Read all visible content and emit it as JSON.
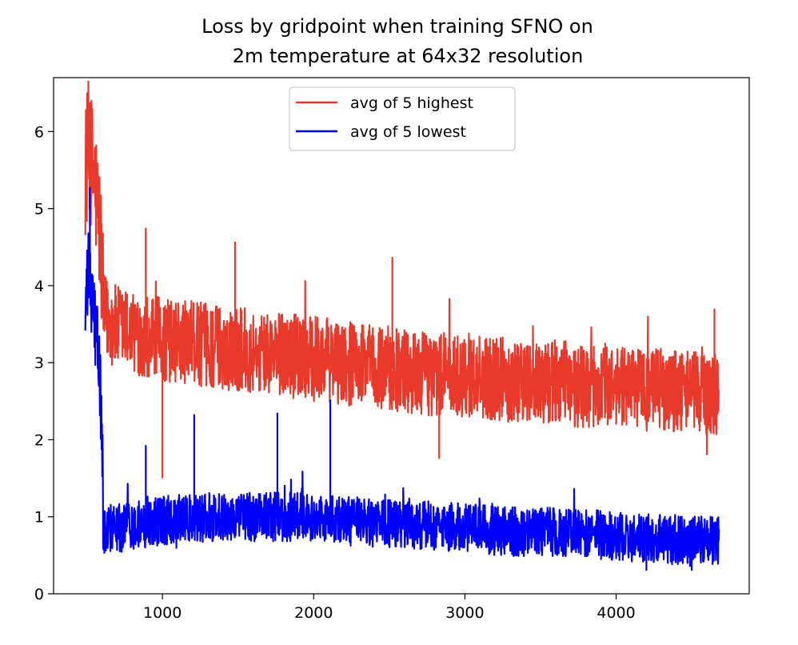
{
  "chart_data": {
    "type": "line",
    "title_lines": [
      "Loss by gridpoint when training SFNO on",
      "2m temperature at 64x32 resolution"
    ],
    "xlabel": "",
    "ylabel": "",
    "xlim": [
      280,
      4880
    ],
    "ylim": [
      0,
      6.7
    ],
    "x_ticks": [
      1000,
      2000,
      3000,
      4000
    ],
    "y_ticks": [
      0,
      1,
      2,
      3,
      4,
      5,
      6
    ],
    "grid": false,
    "legend_position": "upper center",
    "series": [
      {
        "name": "avg of 5 highest",
        "color": "#e8392b",
        "x": [
          490,
          510,
          530,
          550,
          570,
          590,
          610,
          700,
          800,
          900,
          1000,
          1200,
          1400,
          1600,
          1800,
          2000,
          2200,
          2400,
          2600,
          2800,
          3000,
          3200,
          3400,
          3600,
          3800,
          4000,
          4200,
          4400,
          4600,
          4680
        ],
        "y": [
          5.5,
          5.8,
          5.6,
          5.4,
          5.0,
          4.6,
          3.6,
          3.45,
          3.4,
          3.35,
          3.3,
          3.25,
          3.2,
          3.15,
          3.1,
          3.05,
          3.0,
          2.95,
          2.9,
          2.85,
          2.85,
          2.8,
          2.75,
          2.75,
          2.7,
          2.7,
          2.65,
          2.65,
          2.6,
          2.6
        ],
        "noise_amplitude": 0.55,
        "spikes": [
          [
            520,
            6.38
          ],
          [
            890,
            4.75
          ],
          [
            1480,
            4.57
          ],
          [
            2520,
            4.37
          ],
          [
            1000,
            1.5
          ],
          [
            2830,
            1.75
          ],
          [
            4600,
            1.8
          ],
          [
            4650,
            3.7
          ]
        ]
      },
      {
        "name": "avg of 5 lowest",
        "color": "#0000ff",
        "x": [
          490,
          510,
          530,
          550,
          570,
          590,
          610,
          700,
          800,
          900,
          1000,
          1200,
          1400,
          1600,
          1800,
          2000,
          2200,
          2400,
          2600,
          2800,
          3000,
          3200,
          3400,
          3600,
          3800,
          4000,
          4200,
          4400,
          4600,
          4680
        ],
        "y": [
          3.6,
          4.2,
          3.8,
          3.6,
          3.2,
          2.7,
          0.85,
          0.85,
          0.88,
          0.92,
          0.95,
          0.98,
          1.0,
          1.0,
          1.0,
          0.98,
          0.95,
          0.92,
          0.9,
          0.88,
          0.85,
          0.82,
          0.8,
          0.8,
          0.78,
          0.75,
          0.72,
          0.7,
          0.7,
          0.7
        ],
        "noise_amplitude": 0.32,
        "spikes": [
          [
            520,
            5.28
          ],
          [
            1210,
            2.33
          ],
          [
            1760,
            2.35
          ],
          [
            2110,
            2.52
          ],
          [
            890,
            1.93
          ],
          [
            4200,
            0.3
          ],
          [
            4500,
            0.3
          ]
        ]
      }
    ]
  }
}
